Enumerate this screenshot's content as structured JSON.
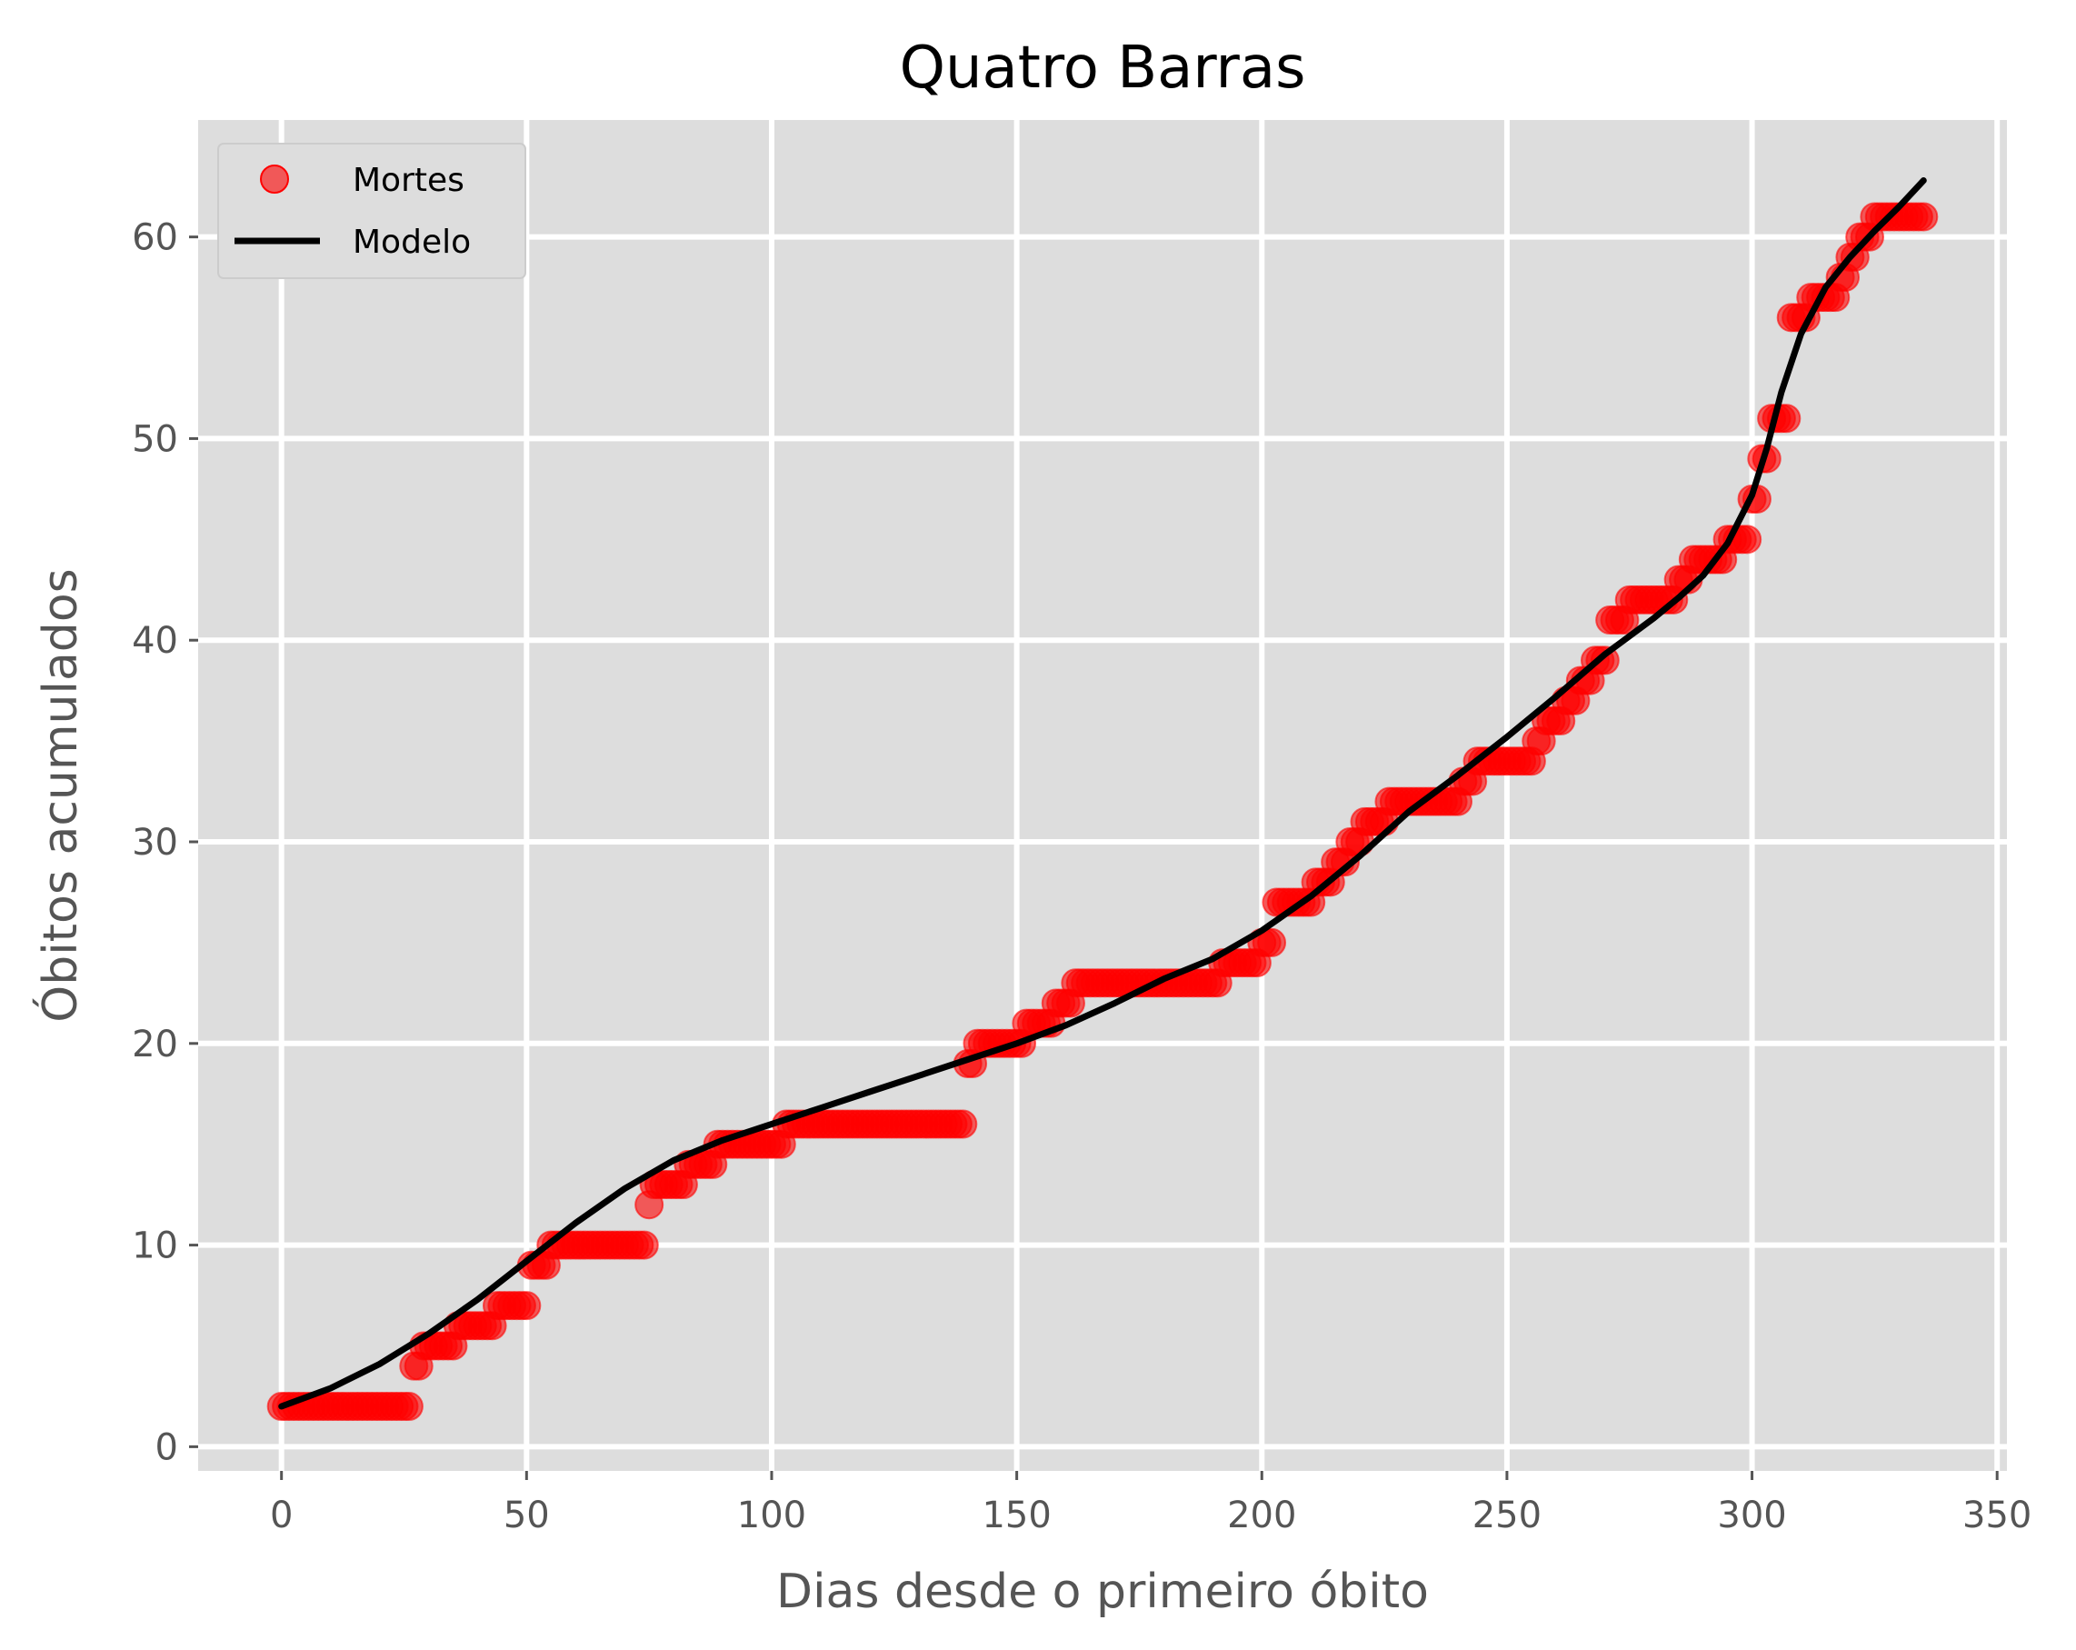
{
  "chart_data": {
    "type": "scatter",
    "title": "Quatro Barras",
    "xlabel": "Dias desde o primeiro óbito",
    "ylabel": "Óbitos acumulados",
    "xlim": [
      -17,
      352
    ],
    "ylim": [
      -1.2,
      65.8
    ],
    "x_ticks": [
      0,
      50,
      100,
      150,
      200,
      250,
      300,
      350
    ],
    "y_ticks": [
      0,
      10,
      20,
      30,
      40,
      50,
      60
    ],
    "grid": true,
    "legend_position": "upper-left",
    "colors": {
      "background": "#dddddd",
      "grid": "#ffffff",
      "points": "#ff0000",
      "model": "#000000"
    },
    "series": [
      {
        "name": "Mortes",
        "kind": "points",
        "steps": [
          [
            0,
            2
          ],
          [
            27,
            4
          ],
          [
            29,
            5
          ],
          [
            36,
            6
          ],
          [
            44,
            7
          ],
          [
            51,
            9
          ],
          [
            55,
            10
          ],
          [
            75,
            12
          ],
          [
            76,
            13
          ],
          [
            83,
            14
          ],
          [
            89,
            15
          ],
          [
            103,
            16
          ],
          [
            140,
            19
          ],
          [
            142,
            20
          ],
          [
            152,
            21
          ],
          [
            158,
            22
          ],
          [
            162,
            23
          ],
          [
            192,
            24
          ],
          [
            200,
            25
          ],
          [
            203,
            27
          ],
          [
            211,
            28
          ],
          [
            215,
            29
          ],
          [
            218,
            30
          ],
          [
            221,
            31
          ],
          [
            226,
            32
          ],
          [
            241,
            33
          ],
          [
            244,
            34
          ],
          [
            256,
            35
          ],
          [
            258,
            36
          ],
          [
            262,
            37
          ],
          [
            265,
            38
          ],
          [
            268,
            39
          ],
          [
            271,
            41
          ],
          [
            275,
            42
          ],
          [
            285,
            43
          ],
          [
            288,
            44
          ],
          [
            295,
            45
          ],
          [
            300,
            47
          ],
          [
            302,
            49
          ],
          [
            304,
            51
          ],
          [
            308,
            56
          ],
          [
            312,
            57
          ],
          [
            318,
            58
          ],
          [
            320,
            59
          ],
          [
            322,
            60
          ],
          [
            325,
            61
          ]
        ],
        "last_x": 335
      },
      {
        "name": "Modelo",
        "kind": "line",
        "x": [
          0,
          10,
          20,
          30,
          40,
          50,
          60,
          70,
          80,
          90,
          100,
          110,
          120,
          130,
          140,
          150,
          160,
          170,
          180,
          190,
          200,
          210,
          220,
          230,
          240,
          250,
          260,
          270,
          280,
          285,
          290,
          295,
          300,
          303,
          306,
          310,
          315,
          320,
          325,
          330,
          335
        ],
        "y": [
          2,
          2.9,
          4.1,
          5.6,
          7.3,
          9.2,
          11.1,
          12.8,
          14.2,
          15.2,
          16.0,
          16.8,
          17.6,
          18.4,
          19.2,
          20.0,
          20.9,
          22.0,
          23.2,
          24.2,
          25.6,
          27.3,
          29.3,
          31.5,
          33.3,
          35.2,
          37.2,
          39.3,
          41.1,
          42.1,
          43.2,
          44.8,
          47.2,
          49.5,
          52.3,
          55.2,
          57.5,
          59.0,
          60.3,
          61.5,
          62.8
        ]
      }
    ]
  }
}
